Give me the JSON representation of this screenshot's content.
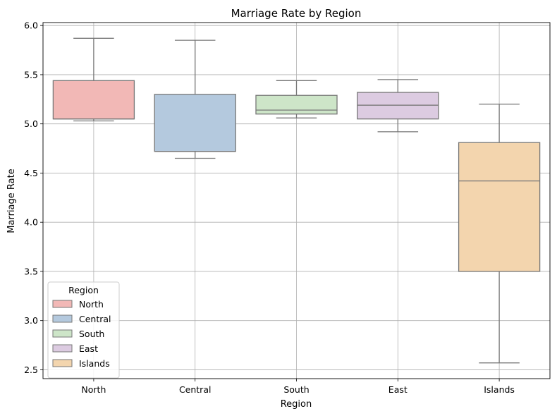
{
  "chart_data": {
    "type": "box",
    "title": "Marriage Rate by Region",
    "xlabel": "Region",
    "ylabel": "Marriage Rate",
    "ylim": [
      2.41,
      6.03
    ],
    "yticks": [
      2.5,
      3.0,
      3.5,
      4.0,
      4.5,
      5.0,
      5.5,
      6.0
    ],
    "ytick_labels": [
      "2.5",
      "3.0",
      "3.5",
      "4.0",
      "4.5",
      "5.0",
      "5.5",
      "6.0"
    ],
    "grid": true,
    "legend_title": "Region",
    "legend_position": "lower-left",
    "categories": [
      "North",
      "Central",
      "South",
      "East",
      "Islands"
    ],
    "series": [
      {
        "name": "North",
        "color": "#f2b8b6",
        "whisker_low": 5.03,
        "q1": 5.05,
        "median": 5.05,
        "q3": 5.44,
        "whisker_high": 5.87
      },
      {
        "name": "Central",
        "color": "#b4c9de",
        "whisker_low": 4.65,
        "q1": 4.72,
        "median": 4.72,
        "q3": 5.3,
        "whisker_high": 5.85
      },
      {
        "name": "South",
        "color": "#cde5c8",
        "whisker_low": 5.06,
        "q1": 5.1,
        "median": 5.14,
        "q3": 5.29,
        "whisker_high": 5.44
      },
      {
        "name": "East",
        "color": "#dccbe1",
        "whisker_low": 4.92,
        "q1": 5.05,
        "median": 5.19,
        "q3": 5.32,
        "whisker_high": 5.45
      },
      {
        "name": "Islands",
        "color": "#f3d5ae",
        "whisker_low": 2.57,
        "q1": 3.5,
        "median": 4.42,
        "q3": 4.81,
        "whisker_high": 5.2
      }
    ]
  }
}
